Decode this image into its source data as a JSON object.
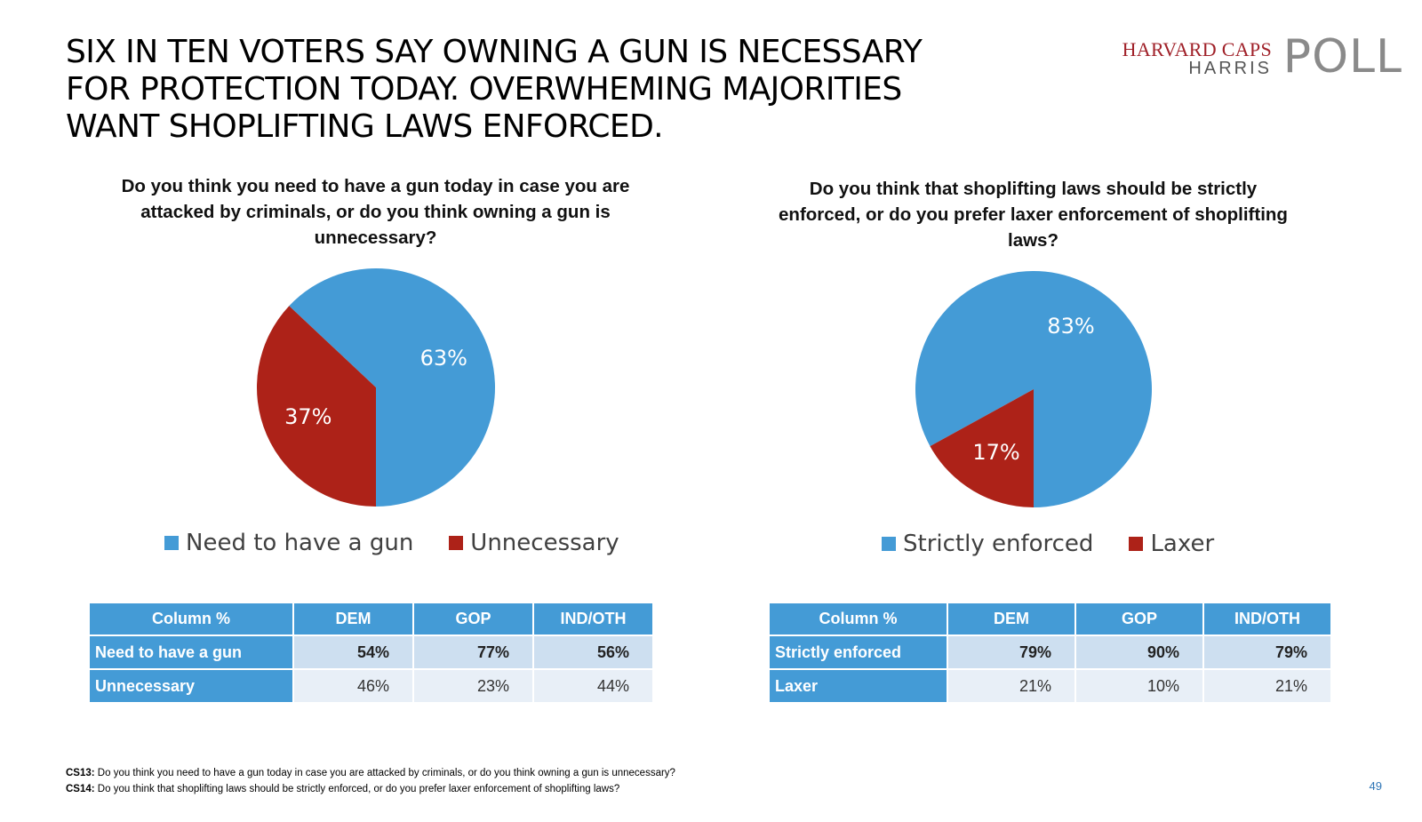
{
  "title": "SIX IN TEN VOTERS SAY OWNING A GUN IS NECESSARY FOR PROTECTION TODAY. OVERWHEMING MAJORITIES WANT SHOPLIFTING LAWS ENFORCED.",
  "logo": {
    "line1": "HARVARD CAPS",
    "line2": "HARRIS",
    "line3": "POLL"
  },
  "colors": {
    "blue": "#449bd6",
    "red": "#ad2218",
    "table_header": "#449bd6",
    "row1_bg": "#cddff0",
    "row2_bg": "#e8eff7"
  },
  "chart_data": [
    {
      "type": "pie",
      "title": "Do you think you need to have a gun today in case you are attacked by criminals, or do you think owning a gun is unnecessary?",
      "categories": [
        "Need to have a gun",
        "Unnecessary"
      ],
      "values": [
        63,
        37
      ],
      "labels": [
        "63%",
        "37%"
      ],
      "colors": [
        "#449bd6",
        "#ad2218"
      ],
      "legend": "bottom"
    },
    {
      "type": "pie",
      "title": "Do you think that shoplifting laws should be strictly enforced, or do you prefer laxer enforcement of shoplifting laws?",
      "categories": [
        "Strictly enforced",
        "Laxer"
      ],
      "values": [
        83,
        17
      ],
      "labels": [
        "83%",
        "17%"
      ],
      "colors": [
        "#449bd6",
        "#ad2218"
      ],
      "legend": "bottom"
    }
  ],
  "tables": [
    {
      "headers": [
        "Column %",
        "DEM",
        "GOP",
        "IND/OTH"
      ],
      "rows": [
        {
          "label": "Need to have a gun",
          "values": [
            "54%",
            "77%",
            "56%"
          ]
        },
        {
          "label": "Unnecessary",
          "values": [
            "46%",
            "23%",
            "44%"
          ]
        }
      ]
    },
    {
      "headers": [
        "Column %",
        "DEM",
        "GOP",
        "IND/OTH"
      ],
      "rows": [
        {
          "label": "Strictly enforced",
          "values": [
            "79%",
            "90%",
            "79%"
          ]
        },
        {
          "label": "Laxer",
          "values": [
            "21%",
            "10%",
            "21%"
          ]
        }
      ]
    }
  ],
  "footnotes": [
    {
      "code": "CS13:",
      "text": " Do you think you need to have a gun today in case you are attacked by criminals, or do you think owning a gun is unnecessary?"
    },
    {
      "code": "CS14:",
      "text": " Do you think that shoplifting laws should be strictly enforced, or do you prefer laxer enforcement of shoplifting laws?"
    }
  ],
  "page_number": "49"
}
